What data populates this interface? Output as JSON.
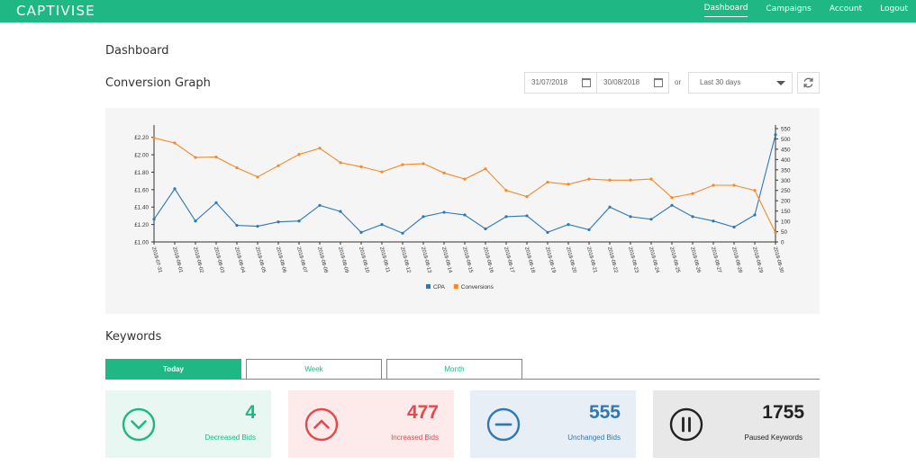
{
  "brand": {
    "logo_text": "CAPTIVISE"
  },
  "nav": {
    "items": [
      "Dashboard",
      "Campaigns",
      "Account",
      "Logout"
    ]
  },
  "page": {
    "title": "Dashboard"
  },
  "graph_section": {
    "title": "Conversion Graph",
    "date_from": "31/07/2018",
    "date_to": "30/08/2018",
    "or_label": "or",
    "range_select": "Last 30 days"
  },
  "chart_data": {
    "type": "line",
    "x": [
      "2018-07-31",
      "2018-08-01",
      "2018-08-02",
      "2018-08-03",
      "2018-08-04",
      "2018-08-05",
      "2018-08-06",
      "2018-08-07",
      "2018-08-08",
      "2018-08-09",
      "2018-08-10",
      "2018-08-11",
      "2018-08-12",
      "2018-08-13",
      "2018-08-14",
      "2018-08-15",
      "2018-08-16",
      "2018-08-17",
      "2018-08-18",
      "2018-08-19",
      "2018-08-20",
      "2018-08-21",
      "2018-08-22",
      "2018-08-23",
      "2018-08-24",
      "2018-08-25",
      "2018-08-26",
      "2018-08-27",
      "2018-08-28",
      "2018-08-29",
      "2018-08-30"
    ],
    "series": [
      {
        "name": "CPA",
        "axis": "left",
        "color": "#2f78b7",
        "values": [
          1.26,
          1.61,
          1.24,
          1.45,
          1.19,
          1.18,
          1.23,
          1.24,
          1.42,
          1.35,
          1.11,
          1.2,
          1.1,
          1.29,
          1.34,
          1.31,
          1.15,
          1.29,
          1.3,
          1.11,
          1.2,
          1.14,
          1.4,
          1.29,
          1.26,
          1.42,
          1.29,
          1.24,
          1.17,
          1.31,
          2.23
        ]
      },
      {
        "name": "Conversions",
        "axis": "right",
        "color": "#f48a2a",
        "values": [
          505,
          480,
          410,
          412,
          360,
          315,
          370,
          425,
          455,
          385,
          365,
          340,
          375,
          380,
          335,
          305,
          355,
          250,
          220,
          290,
          280,
          305,
          300,
          300,
          305,
          215,
          235,
          275,
          275,
          250,
          45
        ]
      }
    ],
    "y_left_ticks": [
      "£1.00",
      "£1.20",
      "£1.40",
      "£1.60",
      "£1.80",
      "£2.00",
      "£2.20"
    ],
    "y_left_range": [
      1.0,
      2.3
    ],
    "y_right_ticks": [
      0,
      50,
      100,
      150,
      200,
      250,
      300,
      350,
      400,
      450,
      500,
      550
    ],
    "y_right_range": [
      0,
      550
    ],
    "legend_position": "bottom"
  },
  "keywords_section": {
    "title": "Keywords",
    "tabs": [
      "Today",
      "Week",
      "Month"
    ]
  },
  "stats": [
    {
      "value": "4",
      "label": "Decreased Bids",
      "icon": "chevron-down-circle-icon",
      "color": "#1fb884"
    },
    {
      "value": "477",
      "label": "Increased Bids",
      "icon": "chevron-up-circle-icon",
      "color": "#e8474c"
    },
    {
      "value": "555",
      "label": "Unchanged Bids",
      "icon": "minus-circle-icon",
      "color": "#2f78b7"
    },
    {
      "value": "1755",
      "label": "Paused Keywords",
      "icon": "pause-circle-icon",
      "color": "#222222"
    }
  ]
}
